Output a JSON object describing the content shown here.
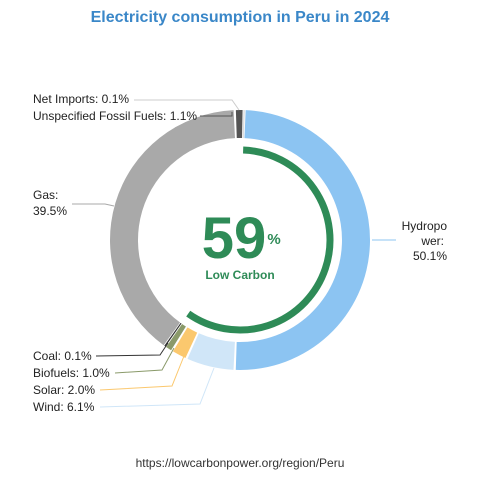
{
  "chart_data": {
    "type": "donut",
    "title": "Electricity consumption in Peru in 2024",
    "slices": [
      {
        "name": "Hydropower",
        "label": [
          "Hydropo",
          "wer:",
          "50.1%"
        ],
        "value": 50.1,
        "color": "#8cc4f2",
        "low_carbon": true
      },
      {
        "name": "Wind",
        "label": [
          "Wind: 6.1%"
        ],
        "value": 6.1,
        "color": "#d0e6f8",
        "low_carbon": true
      },
      {
        "name": "Solar",
        "label": [
          "Solar: 2.0%"
        ],
        "value": 2.0,
        "color": "#fbc86e",
        "low_carbon": true
      },
      {
        "name": "Biofuels",
        "label": [
          "Biofuels: 1.0%"
        ],
        "value": 1.0,
        "color": "#8a9a6a",
        "low_carbon": true
      },
      {
        "name": "Coal",
        "label": [
          "Coal: 0.1%"
        ],
        "value": 0.1,
        "color": "#333333",
        "low_carbon": false
      },
      {
        "name": "Gas",
        "label": [
          "Gas:",
          "39.5%"
        ],
        "value": 39.5,
        "color": "#a9a9a9",
        "low_carbon": false
      },
      {
        "name": "Unspecified Fossil Fuels",
        "label": [
          "Unspecified Fossil Fuels: 1.1%"
        ],
        "value": 1.1,
        "color": "#555555",
        "low_carbon": false
      },
      {
        "name": "Net Imports",
        "label": [
          "Net Imports: 0.1%"
        ],
        "value": 0.1,
        "color": "#dddddd",
        "low_carbon": false
      }
    ],
    "center": {
      "value": "59",
      "unit": "%",
      "caption": "Low Carbon",
      "low_carbon_share": 59.2,
      "color": "#2e8b57"
    }
  },
  "footer": {
    "source": "https://lowcarbonpower.org/region/Peru"
  }
}
